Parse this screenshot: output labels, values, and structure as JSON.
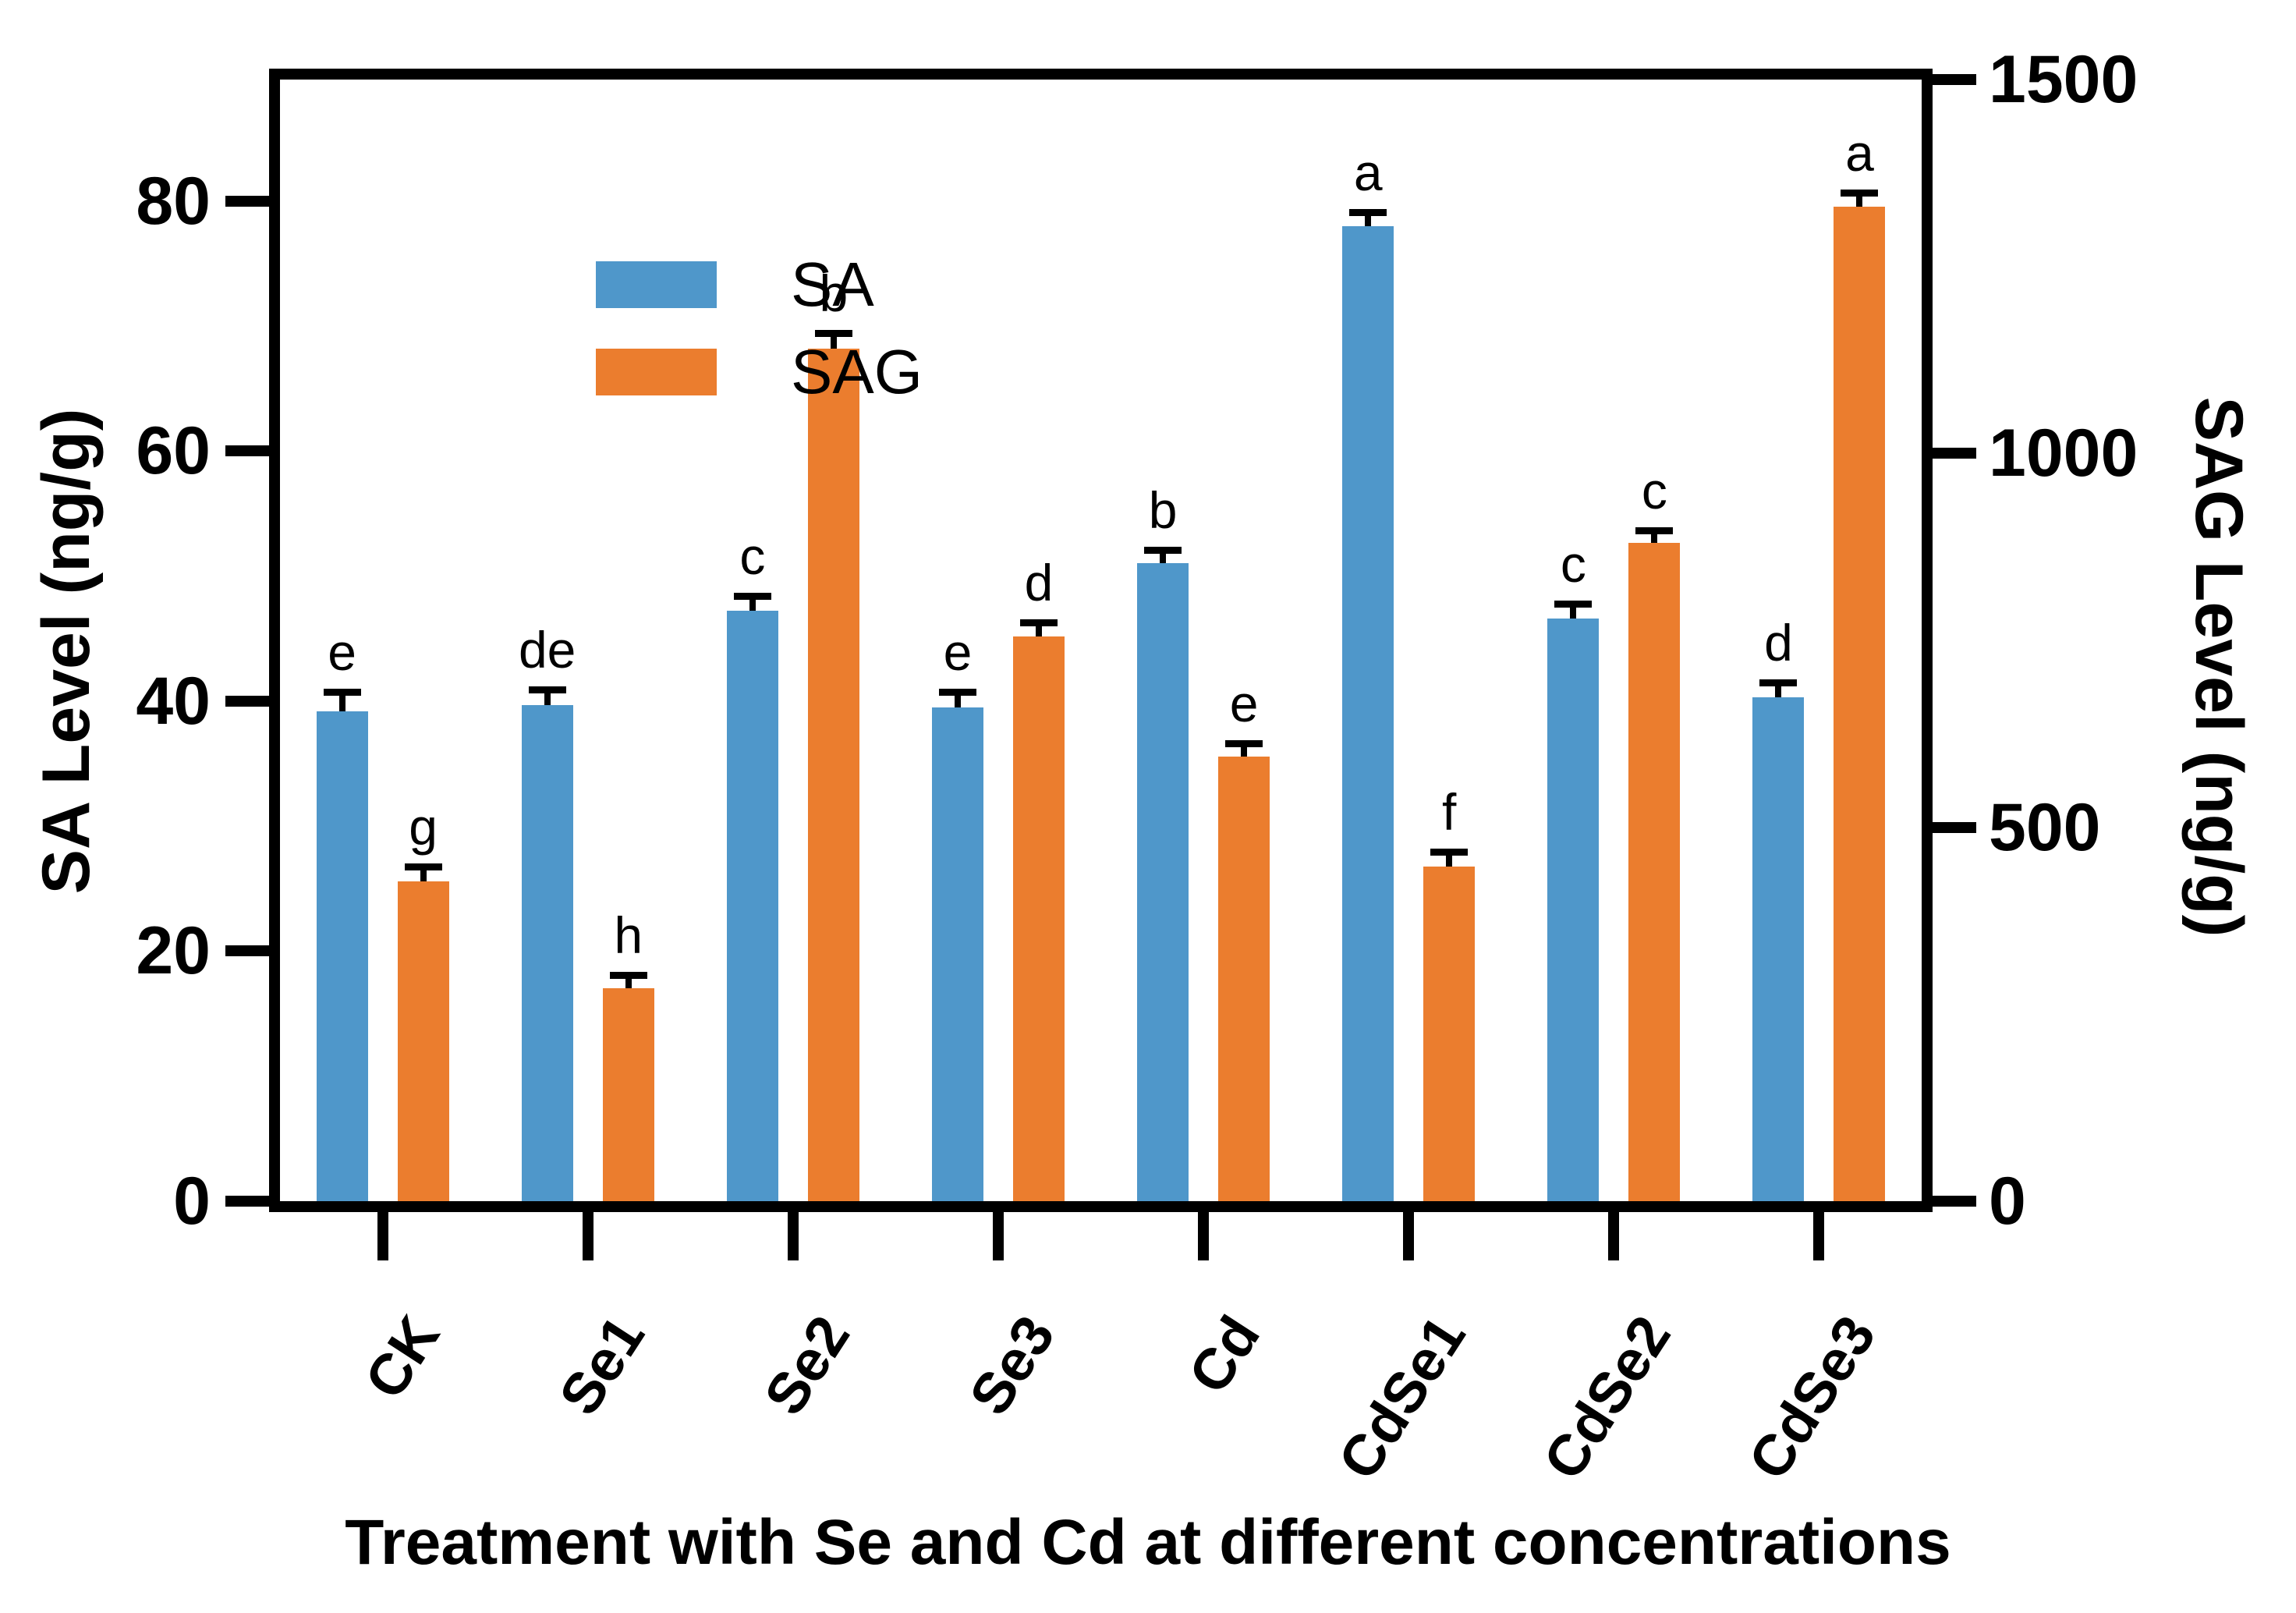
{
  "chart_data": {
    "type": "bar",
    "x_axis_title": "Treatment with Se and Cd at different concentrations",
    "categories": [
      "CK",
      "Se1",
      "Se2",
      "Se3",
      "Cd",
      "CdSe1",
      "CdSe2",
      "CdSe3"
    ],
    "series": [
      {
        "name": "SA",
        "axis": "left",
        "color": "#4F97CA",
        "values": [
          39.2,
          39.7,
          47.2,
          39.5,
          51.0,
          78.0,
          46.6,
          40.3
        ],
        "errors": [
          1.2,
          0.9,
          0.9,
          0.9,
          0.8,
          0.8,
          0.9,
          0.9
        ],
        "letters": [
          "e",
          "de",
          "c",
          "e",
          "b",
          "a",
          "c",
          "d"
        ]
      },
      {
        "name": "SAG",
        "axis": "right",
        "color": "#EB7D2E",
        "values": [
          428,
          285,
          1140,
          755,
          595,
          448,
          880,
          1330
        ],
        "errors": [
          14,
          12,
          16,
          14,
          12,
          14,
          12,
          14
        ],
        "letters": [
          "g",
          "h",
          "b",
          "d",
          "e",
          "f",
          "c",
          "a"
        ]
      }
    ],
    "left_axis": {
      "label": "SA Level (ng/g)",
      "ticks": [
        0,
        20,
        40,
        60,
        80
      ],
      "max": 89.7
    },
    "right_axis": {
      "label": "SAG Level (ng/g)",
      "ticks": [
        0,
        500,
        1000,
        1500
      ],
      "max": 1500
    },
    "legend": {
      "items": [
        "SA",
        "SAG"
      ],
      "position": "top-left-inside"
    },
    "grid": "off",
    "error_bars": "upper-cap",
    "frame_color": "#000000",
    "background_color": "#FFFFFF"
  }
}
